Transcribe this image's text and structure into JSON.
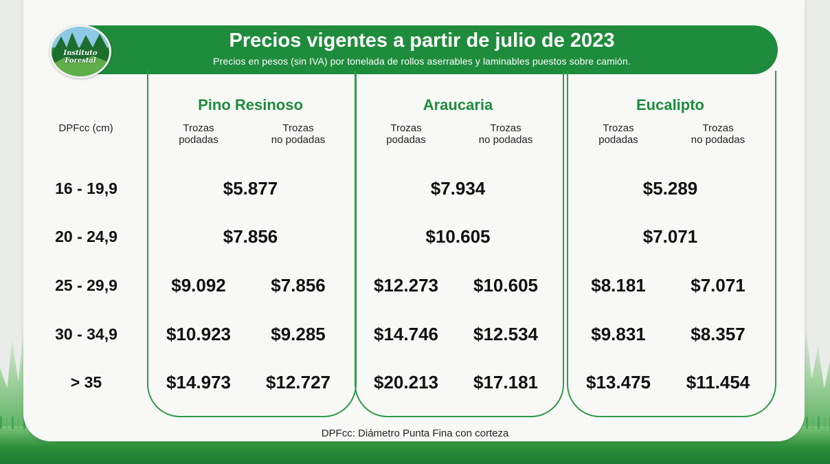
{
  "header": {
    "title": "Precios vigentes a partir de julio de 2023",
    "subtitle": "Precios en pesos (sin IVA) por tonelada de rollos aserrables y laminables puestos sobre camión."
  },
  "logo": {
    "text": "Instituto Forestal",
    "icon": "forest-logo-icon"
  },
  "colors": {
    "brand_green": "#1e8c3c",
    "text": "#111111"
  },
  "table": {
    "axis_label": "DPFcc (cm)",
    "ranges": [
      "16 - 19,9",
      "20 - 24,9",
      "25 - 29,9",
      "30 - 34,9",
      "> 35"
    ],
    "species": [
      {
        "name": "Pino Resinoso",
        "col1": "Trozas\npodadas",
        "col2": "Trozas\nno podadas",
        "merged": [
          "$5.877",
          "$7.856"
        ],
        "split": [
          [
            "$9.092",
            "$7.856"
          ],
          [
            "$10.923",
            "$9.285"
          ],
          [
            "$14.973",
            "$12.727"
          ]
        ]
      },
      {
        "name": "Araucaria",
        "col1": "Trozas\npodadas",
        "col2": "Trozas\nno podadas",
        "merged": [
          "$7.934",
          "$10.605"
        ],
        "split": [
          [
            "$12.273",
            "$10.605"
          ],
          [
            "$14.746",
            "$12.534"
          ],
          [
            "$20.213",
            "$17.181"
          ]
        ]
      },
      {
        "name": "Eucalipto",
        "col1": "Trozas\npodadas",
        "col2": "Trozas\nno podadas",
        "merged": [
          "$5.289",
          "$7.071"
        ],
        "split": [
          [
            "$8.181",
            "$7.071"
          ],
          [
            "$9.831",
            "$8.357"
          ],
          [
            "$13.475",
            "$11.454"
          ]
        ]
      }
    ]
  },
  "footnote": "DPFcc: Diámetro Punta Fina con corteza"
}
